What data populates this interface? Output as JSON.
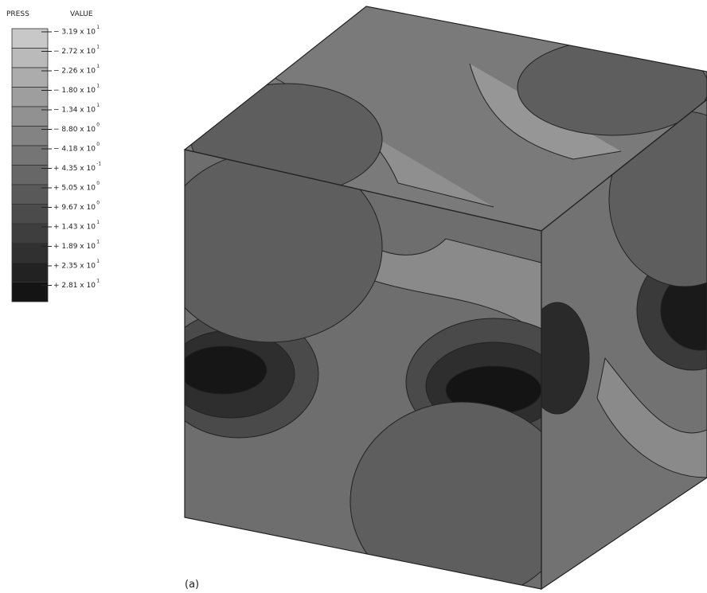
{
  "legend": {
    "header": [
      "PRESS",
      "VALUE"
    ],
    "entries": [
      {
        "text": "− 3.19 x 10",
        "exponent": "1"
      },
      {
        "text": "− 2.72 x 10",
        "exponent": "1"
      },
      {
        "text": "− 2.26 x 10",
        "exponent": "1"
      },
      {
        "text": "− 1.80 x 10",
        "exponent": "1"
      },
      {
        "text": "− 1.34 x 10",
        "exponent": "1"
      },
      {
        "text": "− 8.80 x 10",
        "exponent": "0"
      },
      {
        "text": "− 4.18 x 10",
        "exponent": "0"
      },
      {
        "text": "+ 4.35 x 10",
        "exponent": "-1"
      },
      {
        "text": "+ 5.05 x 10",
        "exponent": "0"
      },
      {
        "text": "+ 9.67 x 10",
        "exponent": "0"
      },
      {
        "text": "+ 1.43 x 10",
        "exponent": "1"
      },
      {
        "text": "+ 1.89 x 10",
        "exponent": "1"
      },
      {
        "text": "+ 2.35 x 10",
        "exponent": "1"
      },
      {
        "text": "+ 2.81 x 10",
        "exponent": "1"
      }
    ]
  },
  "caption": "(a)"
}
